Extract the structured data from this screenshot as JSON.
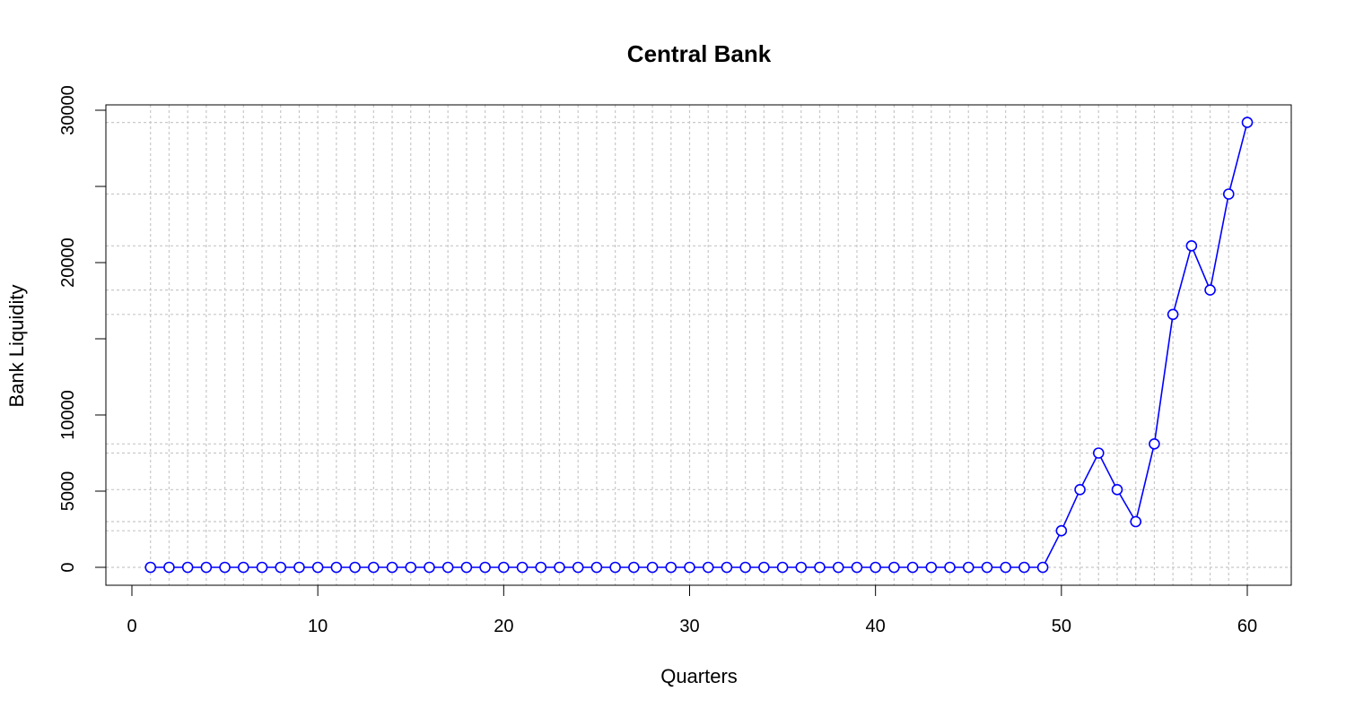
{
  "chart_data": {
    "type": "line",
    "title": "Central Bank",
    "xlabel": "Quarters",
    "ylabel": "Bank Liquidity",
    "xlim": [
      0,
      62
    ],
    "ylim": [
      -1000,
      30000
    ],
    "x_ticks": [
      0,
      10,
      20,
      30,
      40,
      50,
      60
    ],
    "y_ticks": [
      0,
      5000,
      10000,
      20000,
      30000
    ],
    "grid": true,
    "legend": "none",
    "series": [
      {
        "color": "#0000ff",
        "marker": "open-circle",
        "x": [
          1,
          2,
          3,
          4,
          5,
          6,
          7,
          8,
          9,
          10,
          11,
          12,
          13,
          14,
          15,
          16,
          17,
          18,
          19,
          20,
          21,
          22,
          23,
          24,
          25,
          26,
          27,
          28,
          29,
          30,
          31,
          32,
          33,
          34,
          35,
          36,
          37,
          38,
          39,
          40,
          41,
          42,
          43,
          44,
          45,
          46,
          47,
          48,
          49,
          50,
          51,
          52,
          53,
          54,
          55,
          56,
          57,
          58,
          59,
          60
        ],
        "y": [
          0,
          0,
          0,
          0,
          0,
          0,
          0,
          0,
          0,
          0,
          0,
          0,
          0,
          0,
          0,
          0,
          0,
          0,
          0,
          0,
          0,
          0,
          0,
          0,
          0,
          0,
          0,
          0,
          0,
          0,
          0,
          0,
          0,
          0,
          0,
          0,
          0,
          0,
          0,
          0,
          0,
          0,
          0,
          0,
          0,
          0,
          0,
          0,
          0,
          2400,
          5100,
          7500,
          5100,
          3000,
          8100,
          16600,
          21100,
          18200,
          24500,
          29200
        ]
      }
    ]
  }
}
